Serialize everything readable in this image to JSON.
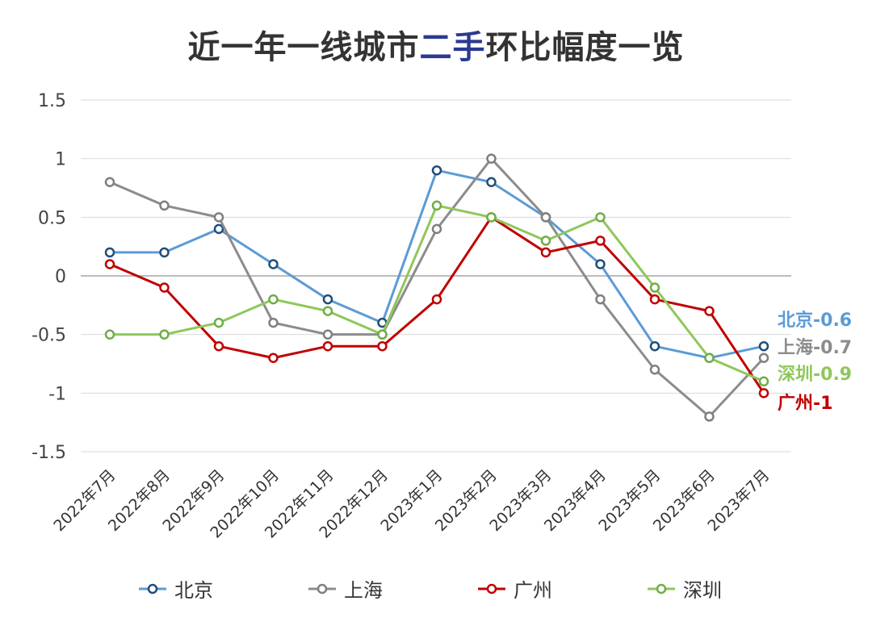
{
  "title": {
    "prefix": "近一年一线城市",
    "highlight": "二手",
    "suffix": "环比幅度一览",
    "highlight_color": "#2b3a8f"
  },
  "chart_data": {
    "type": "line",
    "categories": [
      "2022年7月",
      "2022年8月",
      "2022年9月",
      "2022年10月",
      "2022年11月",
      "2022年12月",
      "2023年1月",
      "2023年2月",
      "2023年3月",
      "2023年4月",
      "2023年5月",
      "2023年6月",
      "2023年7月"
    ],
    "yticks": [
      "1.5",
      "1",
      "0.5",
      "0",
      "-0.5",
      "-1",
      "-1.5"
    ],
    "ylim": [
      -1.5,
      1.5
    ],
    "grid": true,
    "legend_position": "bottom",
    "series": [
      {
        "name": "北京",
        "color": "#5b9bd5",
        "marker_color": "#1f4e79",
        "values": [
          0.2,
          0.2,
          0.4,
          0.1,
          -0.2,
          -0.4,
          0.9,
          0.8,
          0.5,
          0.1,
          -0.6,
          -0.7,
          -0.6
        ],
        "end_label": "北京-0.6"
      },
      {
        "name": "上海",
        "color": "#8c8c8c",
        "marker_color": "#7f7f7f",
        "values": [
          0.8,
          0.6,
          0.5,
          -0.4,
          -0.5,
          -0.5,
          0.4,
          1.0,
          0.5,
          -0.2,
          -0.8,
          -1.2,
          -0.7
        ],
        "end_label": "上海-0.7"
      },
      {
        "name": "广州",
        "color": "#c00000",
        "marker_color": "#c00000",
        "values": [
          0.1,
          -0.1,
          -0.6,
          -0.7,
          -0.6,
          -0.6,
          -0.2,
          0.5,
          0.2,
          0.3,
          -0.2,
          -0.3,
          -1.0
        ],
        "end_label": "广州-1"
      },
      {
        "name": "深圳",
        "color": "#8fc75a",
        "marker_color": "#70ad47",
        "values": [
          -0.5,
          -0.5,
          -0.4,
          -0.2,
          -0.3,
          -0.5,
          0.6,
          0.5,
          0.3,
          0.5,
          -0.1,
          -0.7,
          -0.9
        ],
        "end_label": "深圳-0.9"
      }
    ]
  }
}
